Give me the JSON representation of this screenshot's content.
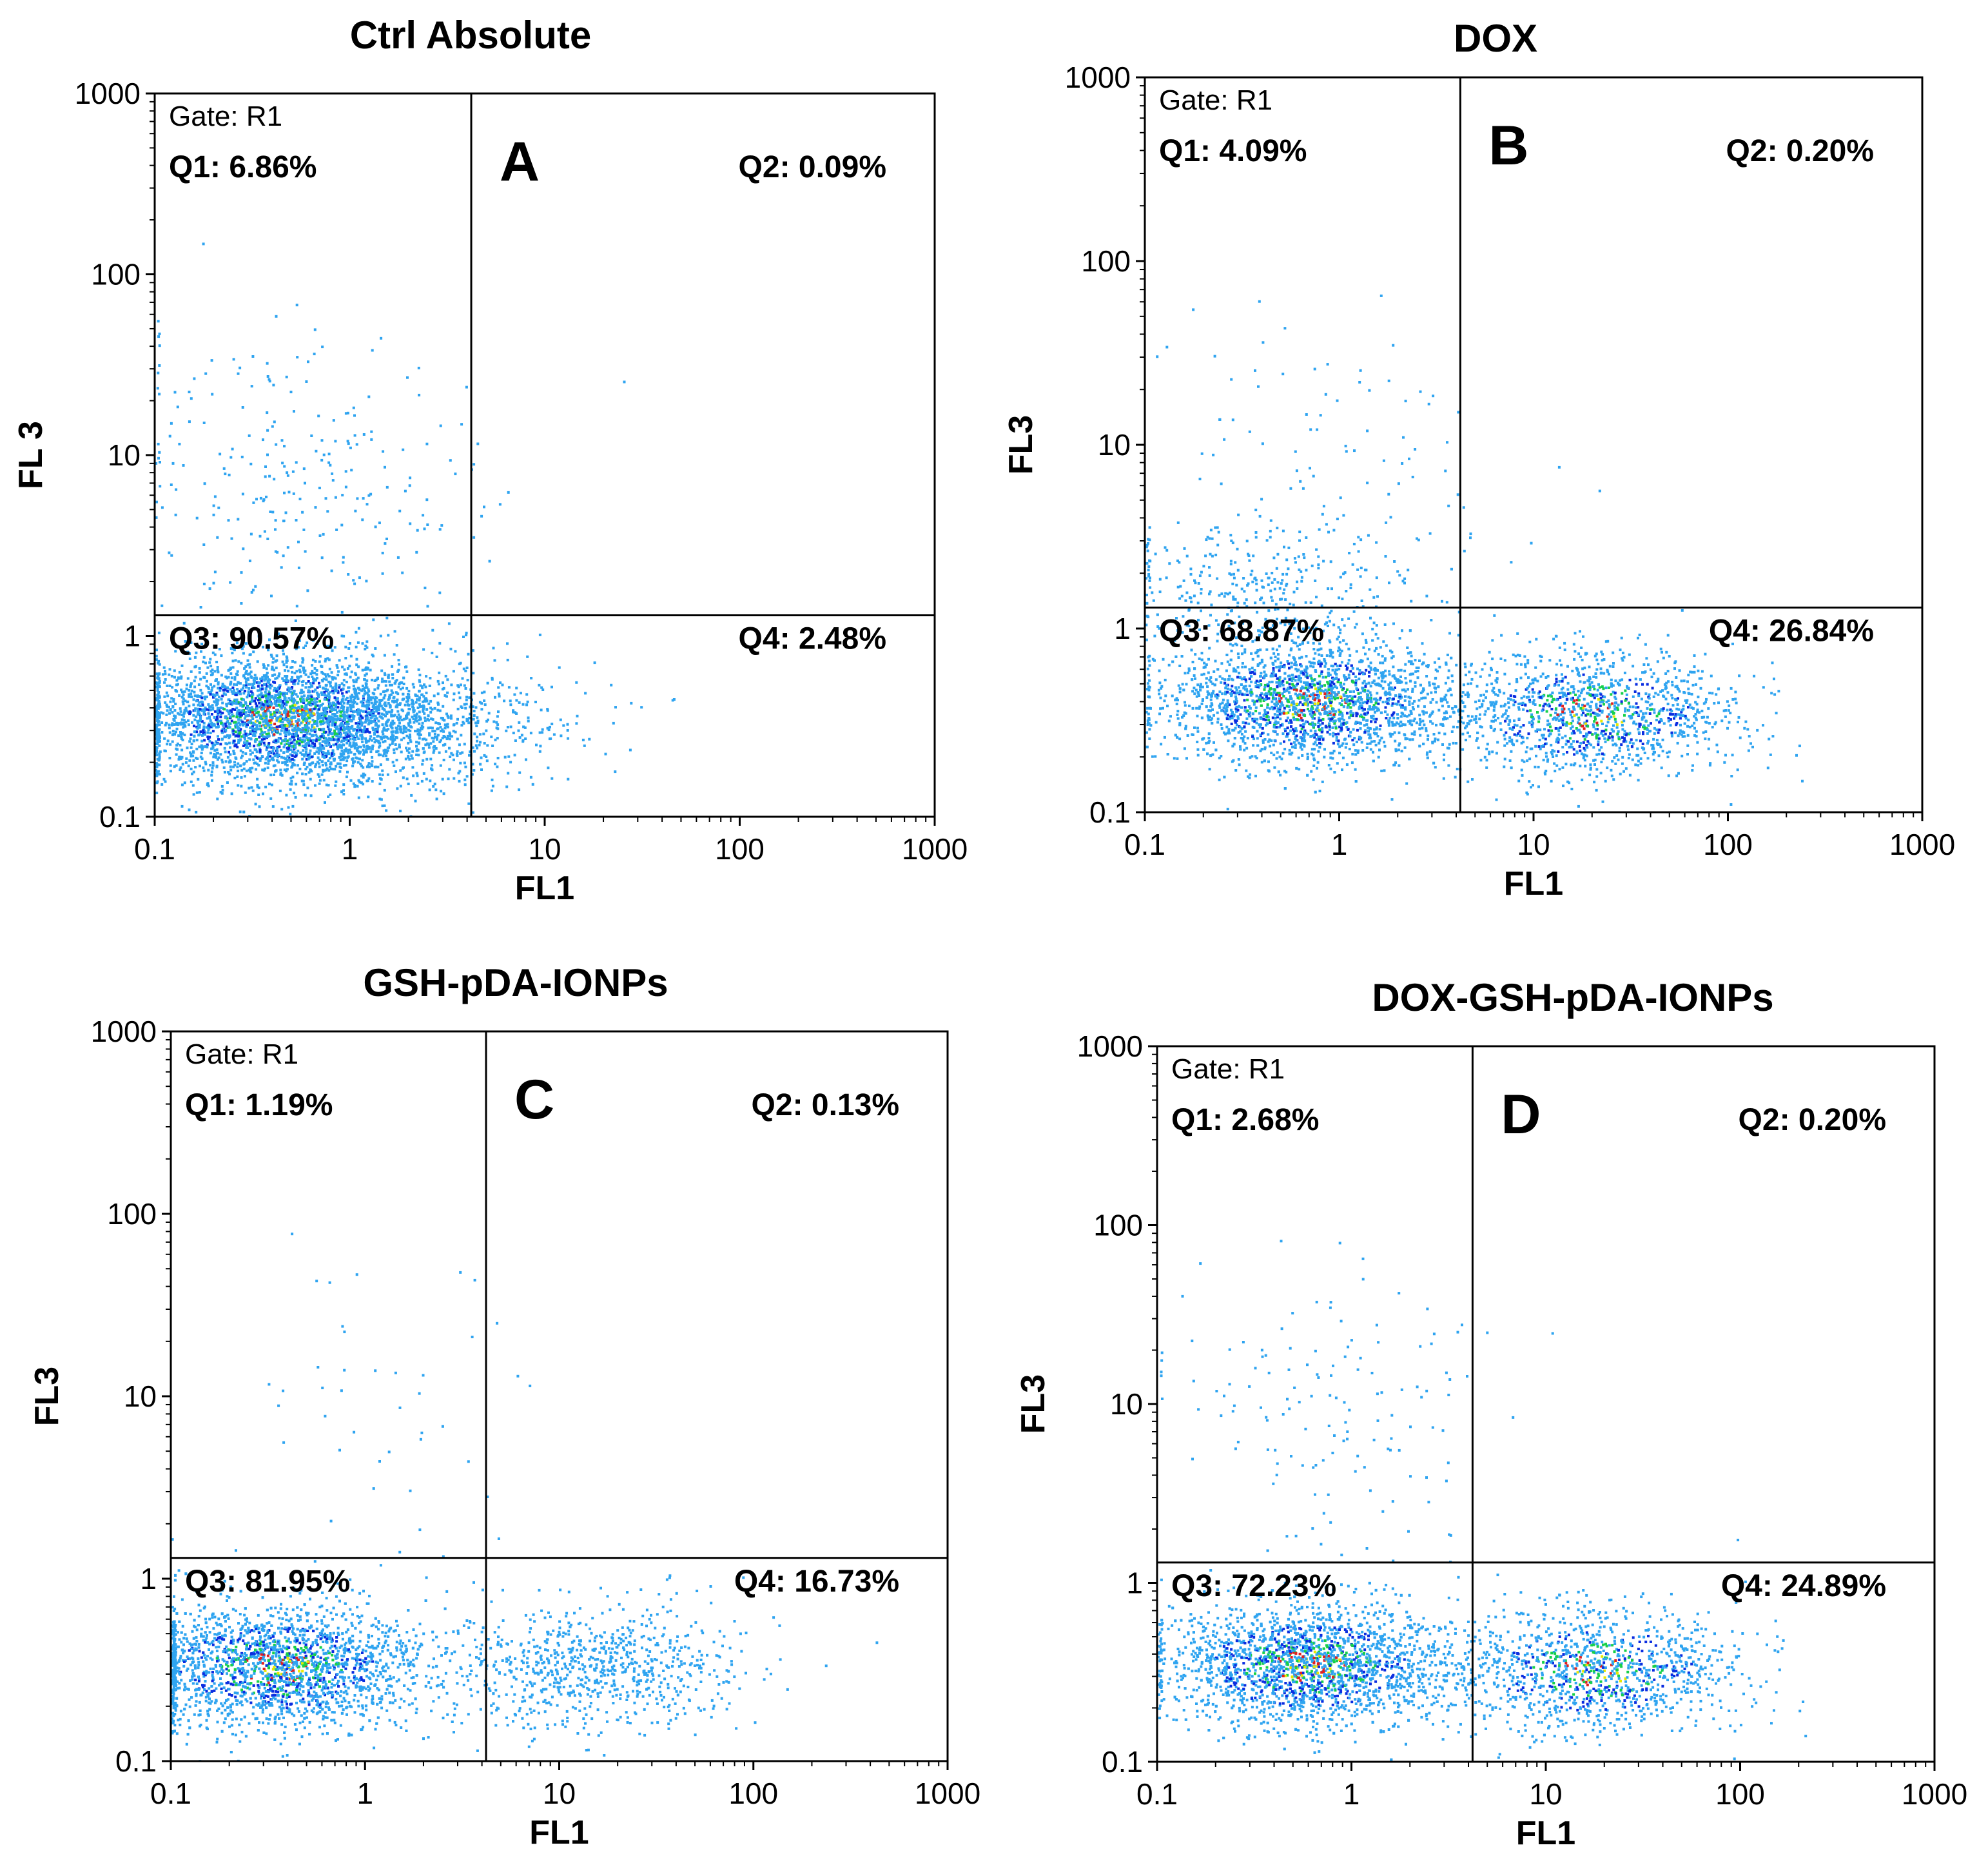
{
  "chart_data": [
    {
      "type": "scatter",
      "title": "Ctrl Absolute",
      "panel_letter": "A",
      "xlabel": "FL1",
      "ylabel": "FL 3",
      "xscale": "log",
      "yscale": "log",
      "xlim": [
        0.1,
        1000
      ],
      "ylim": [
        0.1,
        1000
      ],
      "xticks": [
        "0.1",
        "1",
        "10",
        "100",
        "1000"
      ],
      "yticks": [
        "0.1",
        "1",
        "10",
        "100",
        "1000"
      ],
      "gate_label": "Gate: R1",
      "quadrant_divider": {
        "x": 4.2,
        "y": 1.3
      },
      "quadrants": {
        "Q1": "Q1: 6.86%",
        "Q2": "Q2: 0.09%",
        "Q3": "Q3: 90.57%",
        "Q4": "Q4: 2.48%"
      },
      "populations": [
        {
          "x_center": 0.45,
          "y_center": 0.35,
          "count": 3200
        },
        {
          "x_center": 1.6,
          "y_center": 0.33,
          "count": 700
        },
        {
          "x_center": 6.0,
          "y_center": 0.35,
          "count": 100
        },
        {
          "x_center": 0.5,
          "y_center": 8.0,
          "count": 260
        }
      ]
    },
    {
      "type": "scatter",
      "title": "DOX",
      "panel_letter": "B",
      "xlabel": "FL1",
      "ylabel": "FL3",
      "xscale": "log",
      "yscale": "log",
      "xlim": [
        0.1,
        1000
      ],
      "ylim": [
        0.1,
        1000
      ],
      "xticks": [
        "0.1",
        "1",
        "10",
        "100",
        "1000"
      ],
      "yticks": [
        "0.1",
        "1",
        "10",
        "100",
        "1000"
      ],
      "gate_label": "Gate: R1",
      "quadrant_divider": {
        "x": 4.2,
        "y": 1.3
      },
      "quadrants": {
        "Q1": "Q1: 4.09%",
        "Q2": "Q2: 0.20%",
        "Q3": "Q3: 68.87%",
        "Q4": "Q4: 26.84%"
      },
      "populations": [
        {
          "x_center": 0.7,
          "y_center": 0.4,
          "count": 2600
        },
        {
          "x_center": 20,
          "y_center": 0.35,
          "count": 1300
        },
        {
          "x_center": 0.35,
          "y_center": 1.8,
          "count": 300
        },
        {
          "x_center": 1.2,
          "y_center": 8.0,
          "count": 100
        }
      ]
    },
    {
      "type": "scatter",
      "title": "GSH-pDA-IONPs",
      "panel_letter": "C",
      "xlabel": "FL1",
      "ylabel": "FL3",
      "xscale": "log",
      "yscale": "log",
      "xlim": [
        0.1,
        1000
      ],
      "ylim": [
        0.1,
        1000
      ],
      "xticks": [
        "0.1",
        "1",
        "10",
        "100",
        "1000"
      ],
      "yticks": [
        "0.1",
        "1",
        "10",
        "100",
        "1000"
      ],
      "gate_label": "Gate: R1",
      "quadrant_divider": {
        "x": 4.2,
        "y": 1.3
      },
      "quadrants": {
        "Q1": "Q1: 1.19%",
        "Q2": "Q2: 0.13%",
        "Q3": "Q3: 81.95%",
        "Q4": "Q4: 16.73%"
      },
      "populations": [
        {
          "x_center": 0.35,
          "y_center": 0.33,
          "count": 3000
        },
        {
          "x_center": 15,
          "y_center": 0.33,
          "count": 800
        },
        {
          "x_center": 1.0,
          "y_center": 8.0,
          "count": 45
        }
      ]
    },
    {
      "type": "scatter",
      "title": "DOX-GSH-pDA-IONPs",
      "panel_letter": "D",
      "xlabel": "FL1",
      "ylabel": "FL3",
      "xscale": "log",
      "yscale": "log",
      "xlim": [
        0.1,
        1000
      ],
      "ylim": [
        0.1,
        1000
      ],
      "xticks": [
        "0.1",
        "1",
        "10",
        "100",
        "1000"
      ],
      "yticks": [
        "0.1",
        "1",
        "10",
        "100",
        "1000"
      ],
      "gate_label": "Gate: R1",
      "quadrant_divider": {
        "x": 4.2,
        "y": 1.3
      },
      "quadrants": {
        "Q1": "Q1: 2.68%",
        "Q2": "Q2: 0.20%",
        "Q3": "Q3: 72.23%",
        "Q4": "Q4: 24.89%"
      },
      "populations": [
        {
          "x_center": 0.6,
          "y_center": 0.35,
          "count": 2700
        },
        {
          "x_center": 18,
          "y_center": 0.33,
          "count": 1200
        },
        {
          "x_center": 0.8,
          "y_center": 10.0,
          "count": 140
        }
      ]
    }
  ],
  "colors": {
    "base": "#2fa4f0",
    "dense1": "#0a2de0",
    "dense2": "#17d04a",
    "dense3": "#e8e800",
    "dense4": "#e02020",
    "axis": "#000000"
  }
}
